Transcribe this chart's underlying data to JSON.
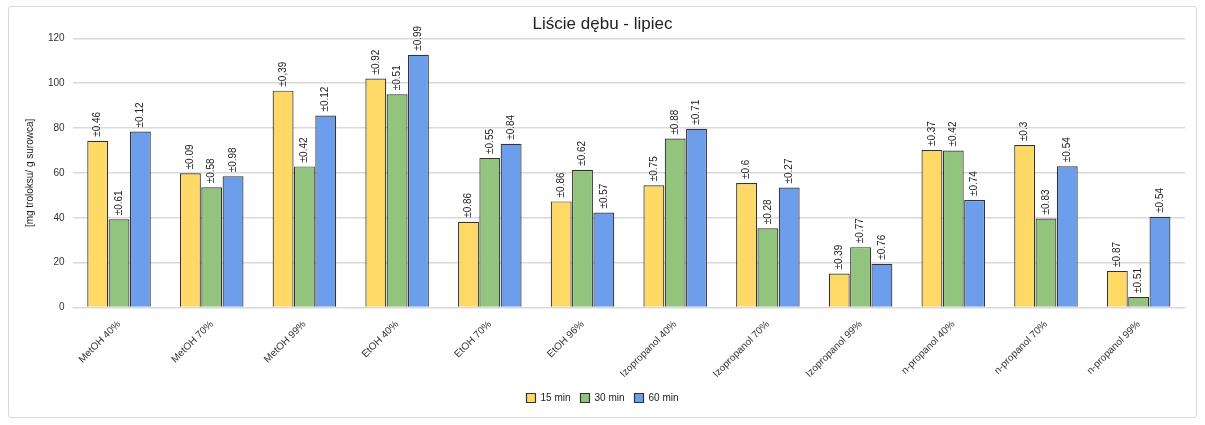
{
  "chart_data": {
    "type": "bar",
    "title": "Liście dębu - lipiec",
    "ylabel": "[mg troloksu/ g surowca]",
    "categories": [
      "MetOH 40%",
      "MetOH 70%",
      "MetOH 99%",
      "EtOH 40%",
      "EtOH 70%",
      "EtOH 96%",
      "Izopropanol 40%",
      "Izopropanol 70%",
      "Izopropanol 99%",
      "n-propanol 40%",
      "n-propanol 70%",
      "n-propanol 99%"
    ],
    "series": [
      {
        "name": "15 min",
        "color": "#ffd966",
        "values": [
          74.3,
          59.8,
          96.7,
          102.1,
          38.2,
          47.3,
          54.5,
          55.5,
          15.1,
          70.2,
          72.4,
          16.3
        ]
      },
      {
        "name": "30 min",
        "color": "#93c47d",
        "values": [
          39.3,
          53.6,
          62.9,
          95.1,
          66.7,
          61.4,
          75.3,
          35.3,
          26.9,
          70.0,
          39.7,
          4.7
        ]
      },
      {
        "name": "60 min",
        "color": "#6d9eeb",
        "values": [
          78.5,
          58.5,
          85.6,
          112.7,
          73.0,
          42.3,
          79.7,
          53.5,
          19.5,
          47.9,
          63.0,
          40.4
        ]
      }
    ],
    "annotations": [
      "±0.46",
      "±0.61",
      "±0.12",
      "±0.09",
      "±0.58",
      "±0.98",
      "±0,39",
      "±0.42",
      "±0.12",
      "±0.92",
      "±0.51",
      "±0.99",
      "±0.86",
      "±0.55",
      "±0.84",
      "±0.86",
      "±0.62",
      "±0.57",
      "±0.75",
      "±0.88",
      "±0.71",
      "±0.6",
      "±0.28",
      "±0.27",
      "±0.39",
      "±0.77",
      "±0.76",
      "±0.37",
      "±0.42",
      "±0.74",
      "±0.3",
      "±0.83",
      "±0.54",
      "±0.87",
      "±0.51",
      "±0.54"
    ],
    "ylim": [
      0,
      120
    ],
    "yticks": [
      0,
      20,
      40,
      60,
      80,
      100,
      120
    ],
    "grid": "y",
    "legend": "bottom"
  }
}
